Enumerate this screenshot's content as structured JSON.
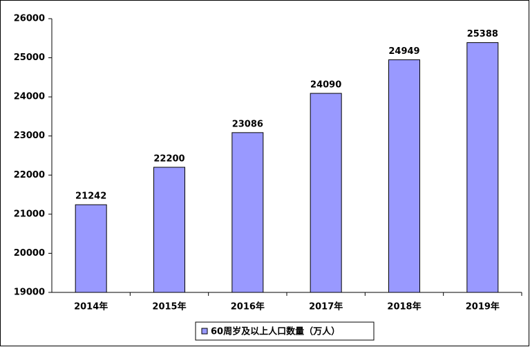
{
  "chart_data": {
    "type": "bar",
    "categories": [
      "2014年",
      "2015年",
      "2016年",
      "2017年",
      "2018年",
      "2019年"
    ],
    "series": [
      {
        "name": "60周岁及以上人口数量（万人）",
        "color": "#9999ff",
        "values": [
          21242,
          22200,
          23086,
          24090,
          24949,
          25388
        ]
      }
    ],
    "ylim": [
      19000,
      26000
    ],
    "yticks": [
      19000,
      20000,
      21000,
      22000,
      23000,
      24000,
      25000,
      26000
    ],
    "grid": false,
    "legend": "bottom"
  }
}
